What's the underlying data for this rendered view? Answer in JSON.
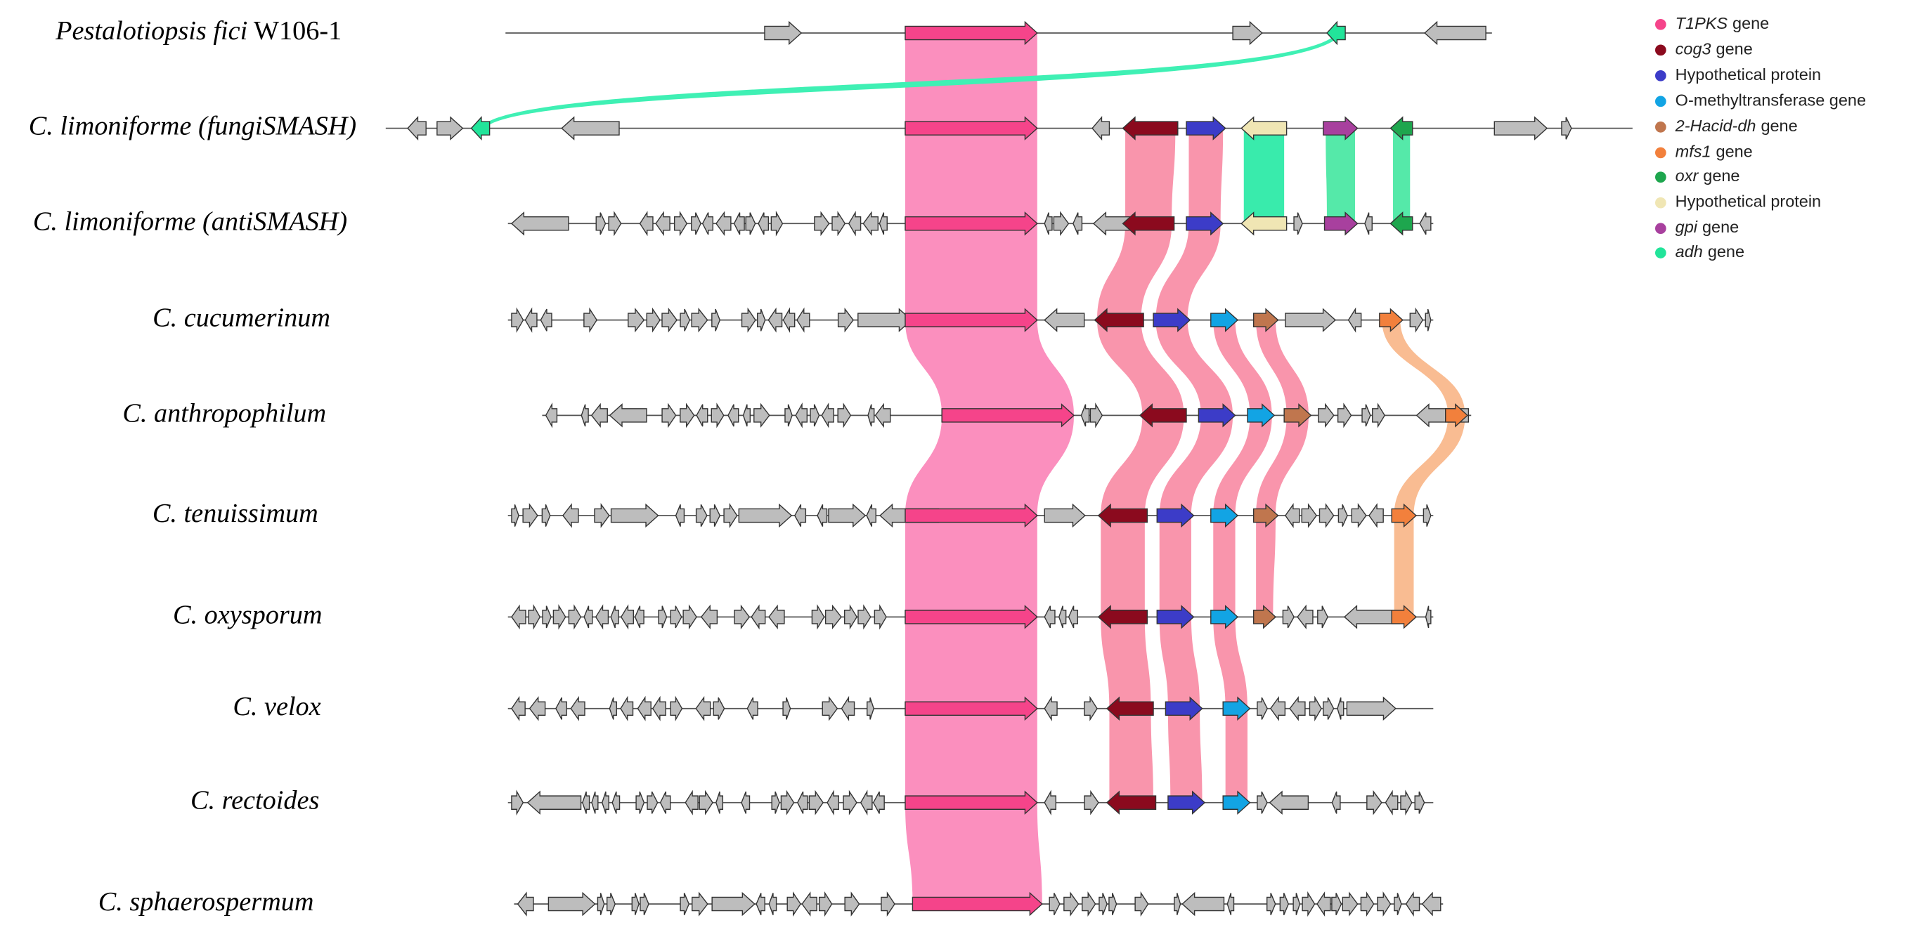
{
  "rows": [
    {
      "label": {
        "italic": "Pestalotiopsis fici",
        "text": "W106-1"
      }
    },
    {
      "label": {
        "italic": "C. limoniforme (fungiSMASH)"
      }
    },
    {
      "label": {
        "italic": "C. limoniforme (antiSMASH)"
      }
    },
    {
      "label": {
        "italic": "C. cucumerinum"
      }
    },
    {
      "label": {
        "italic": "C. anthropophilum"
      }
    },
    {
      "label": {
        "italic": "C. tenuissimum"
      }
    },
    {
      "label": {
        "italic": "C. oxysporum"
      }
    },
    {
      "label": {
        "italic": "C. velox"
      }
    },
    {
      "label": {
        "italic": "C. rectoides"
      }
    },
    {
      "label": {
        "italic": "C. sphaerospermum"
      }
    }
  ],
  "legend": {
    "items": [
      {
        "italic": "T1PKS",
        "text": "gene",
        "color": "#f5448a"
      },
      {
        "italic": "cog3",
        "text": "gene",
        "color": "#8b0a1e"
      },
      {
        "text": "Hypothetical protein",
        "color": "#3c3cc8"
      },
      {
        "text": "O-methyltransferase gene",
        "color": "#12a4e4"
      },
      {
        "italic": "2-Hacid-dh",
        "text": "gene",
        "color": "#c0764e"
      },
      {
        "italic": "mfs1",
        "text": "gene",
        "color": "#f2803c"
      },
      {
        "italic": "oxr",
        "text": "gene",
        "color": "#1ea64e"
      },
      {
        "text": "Hypothetical protein",
        "color": "#f0e6b4"
      },
      {
        "italic": "gpi",
        "text": "gene",
        "color": "#a8409e"
      },
      {
        "italic": "adh",
        "text": "gene",
        "color": "#22e49a"
      }
    ]
  }
}
